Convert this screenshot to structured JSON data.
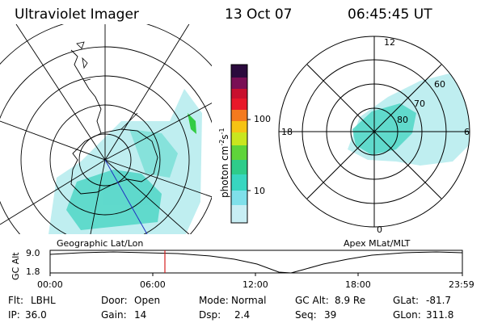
{
  "header": {
    "instrument": "Ultraviolet Imager",
    "date": "13 Oct 07",
    "time": "06:45:45 UT"
  },
  "maps": {
    "left_label": "Geographic Lat/Lon",
    "right_label": "Apex MLat/MLT",
    "mlt_labels": [
      "12",
      "18",
      "6",
      "0"
    ],
    "mlat_labels": [
      "60",
      "70",
      "80"
    ]
  },
  "colorbar": {
    "unit": "photon cm",
    "unit_sup1": "-2",
    "unit_s": "s",
    "unit_sup2": "-1",
    "ticks": [
      "100",
      "10"
    ],
    "scale": "log",
    "colors": [
      "#2b0a3d",
      "#7a0f55",
      "#c8102e",
      "#e8182a",
      "#f47a1e",
      "#f6c314",
      "#c9e61f",
      "#5fd43a",
      "#2ecc8a",
      "#38d6c0",
      "#7fe0ea",
      "#c8eef4"
    ]
  },
  "altplot": {
    "ylabel": "GC Alt",
    "yticks": [
      "9.0",
      "1.8"
    ],
    "xticks": [
      "00:00",
      "06:00",
      "12:00",
      "18:00",
      "23:59"
    ],
    "current_time_marker": "06:45:45"
  },
  "info": {
    "row1": [
      {
        "label": "Flt:",
        "value": "LBHL"
      },
      {
        "label": "Door:",
        "value": "Open"
      },
      {
        "label": "Mode:",
        "value": "Normal"
      },
      {
        "label": "GC Alt:",
        "value": "8.9 Re"
      },
      {
        "label": "GLat:",
        "value": "-81.7"
      }
    ],
    "row2": [
      {
        "label": "IP:",
        "value": "36.0"
      },
      {
        "label": "Gain:",
        "value": "14"
      },
      {
        "label": "Dsp:",
        "value": "2.4"
      },
      {
        "label": "Seq:",
        "value": "39"
      },
      {
        "label": "GLon:",
        "value": "311.8"
      }
    ]
  },
  "colors": {
    "aurora": "#4fd6c6",
    "aurora_light": "#bfeef0",
    "marker": "#d42020"
  }
}
